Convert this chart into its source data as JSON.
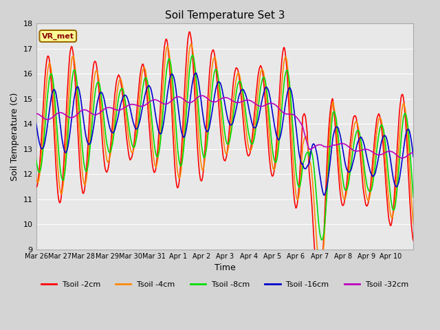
{
  "title": "Soil Temperature Set 3",
  "xlabel": "Time",
  "ylabel": "Soil Temperature (C)",
  "ylim": [
    9.0,
    18.0
  ],
  "yticks": [
    9.0,
    10.0,
    11.0,
    12.0,
    13.0,
    14.0,
    15.0,
    16.0,
    17.0,
    18.0
  ],
  "xtick_labels": [
    "Mar 26",
    "Mar 27",
    "Mar 28",
    "Mar 29",
    "Mar 30",
    "Mar 31",
    "Apr 1",
    "Apr 2",
    "Apr 3",
    "Apr 4",
    "Apr 5",
    "Apr 6",
    "Apr 7",
    "Apr 8",
    "Apr 9",
    "Apr 10"
  ],
  "line_colors": [
    "#ff0000",
    "#ff8800",
    "#00dd00",
    "#0000cc",
    "#bb00bb"
  ],
  "line_labels": [
    "Tsoil -2cm",
    "Tsoil -4cm",
    "Tsoil -8cm",
    "Tsoil -16cm",
    "Tsoil -32cm"
  ],
  "line_widths": [
    1.2,
    1.2,
    1.2,
    1.2,
    1.2
  ],
  "bg_color": "#d4d4d4",
  "plot_bg_color": "#e8e8e8",
  "grid_color": "#ffffff",
  "annotation_text": "VR_met",
  "annotation_bg": "#ffff99",
  "annotation_border": "#996600"
}
